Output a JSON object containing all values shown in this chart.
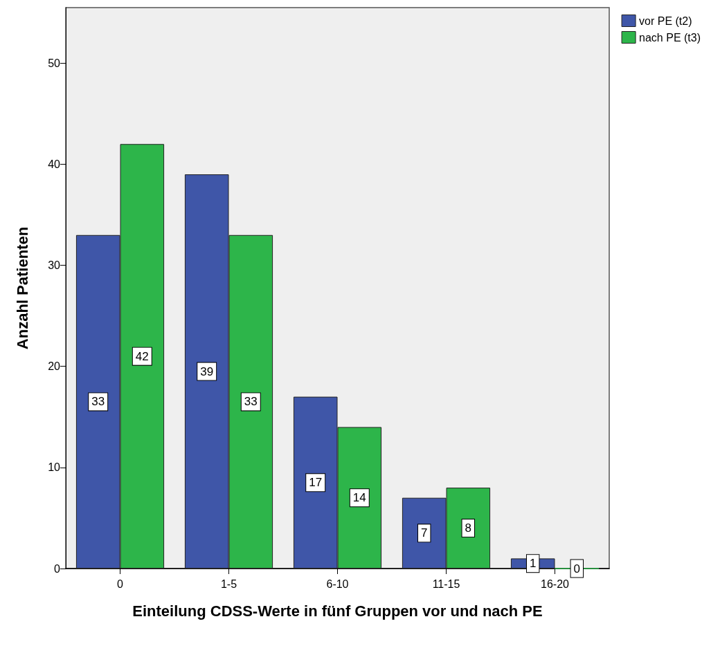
{
  "chart_data": {
    "type": "bar",
    "xlabel": "Einteilung CDSS-Werte in fünf Gruppen vor und nach PE",
    "ylabel": "Anzahl Patienten",
    "categories": [
      "0",
      "1-5",
      "6-10",
      "11-15",
      "16-20"
    ],
    "series": [
      {
        "name": "vor PE (t2)",
        "color": "#3f56a8",
        "values": [
          33,
          39,
          17,
          7,
          1
        ]
      },
      {
        "name": "nach PE (t3)",
        "color": "#2db54a",
        "values": [
          42,
          33,
          14,
          8,
          0
        ]
      }
    ],
    "ylim": [
      0,
      55.5
    ],
    "yticks": [
      0,
      10,
      20,
      30,
      40,
      50
    ],
    "grid": false,
    "legend": "top right",
    "data_labels": true
  }
}
